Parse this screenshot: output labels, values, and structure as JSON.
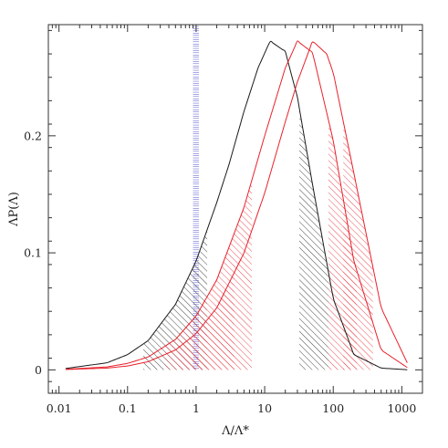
{
  "chart_data": {
    "type": "line",
    "xlabel": "Λ/Λ*",
    "ylabel": "ΛP(Λ)",
    "xscale": "log",
    "xlim": [
      0.007,
      2000
    ],
    "ylim": [
      -0.02,
      0.295
    ],
    "xticks": [
      {
        "value": 0.01,
        "label": "0.01"
      },
      {
        "value": 0.1,
        "label": "0.1"
      },
      {
        "value": 1,
        "label": "1"
      },
      {
        "value": 10,
        "label": "10"
      },
      {
        "value": 100,
        "label": "100"
      },
      {
        "value": 1000,
        "label": "1000"
      }
    ],
    "yticks": [
      {
        "value": 0,
        "label": "0"
      },
      {
        "value": 0.1,
        "label": "0.1"
      },
      {
        "value": 0.2,
        "label": "0.2"
      }
    ],
    "grid": false,
    "legend": "none",
    "colors": {
      "black": "#1a1a1a",
      "red": "#e8212b",
      "blue": "#3d3dc8"
    },
    "series": [
      {
        "color": "black",
        "x": [
          0.0125,
          0.05,
          0.1,
          0.2,
          0.5,
          1,
          2,
          3,
          5,
          8,
          12,
          20,
          30,
          50,
          100,
          200,
          500,
          1200
        ],
        "y": [
          0.0012,
          0.006,
          0.013,
          0.025,
          0.056,
          0.093,
          0.143,
          0.175,
          0.221,
          0.258,
          0.281,
          0.272,
          0.233,
          0.158,
          0.061,
          0.013,
          0.0015,
          0.0001
        ],
        "peak": {
          "x": 12,
          "y": 0.281
        },
        "shaded_low": [
          0.17,
          1.45
        ],
        "shaded_high": [
          32,
          85
        ]
      },
      {
        "color": "red",
        "x": [
          0.0125,
          0.05,
          0.1,
          0.2,
          0.5,
          1,
          2,
          5,
          10,
          20,
          30,
          50,
          100,
          200,
          500,
          1200
        ],
        "y": [
          0.0005,
          0.0025,
          0.0055,
          0.011,
          0.026,
          0.046,
          0.077,
          0.139,
          0.2,
          0.258,
          0.281,
          0.271,
          0.196,
          0.093,
          0.017,
          0.002
        ],
        "peak": {
          "x": 30,
          "y": 0.281
        },
        "shaded_low": [
          0.35,
          6.5
        ],
        "shaded_high": [
          85,
          220
        ]
      },
      {
        "color": "red",
        "x": [
          0.0125,
          0.05,
          0.1,
          0.2,
          0.5,
          1,
          2,
          5,
          10,
          20,
          30,
          50,
          80,
          100,
          200,
          500,
          1200
        ],
        "y": [
          0.0003,
          0.0015,
          0.0033,
          0.007,
          0.017,
          0.031,
          0.053,
          0.1,
          0.151,
          0.212,
          0.246,
          0.281,
          0.27,
          0.254,
          0.168,
          0.053,
          0.006
        ],
        "peak": {
          "x": 50,
          "y": 0.281
        },
        "shaded_low": [
          0.55,
          3.6
        ],
        "shaded_high": [
          140,
          380
        ]
      }
    ],
    "band": {
      "color": "blue",
      "x_range": [
        0.9,
        1.1
      ]
    }
  }
}
